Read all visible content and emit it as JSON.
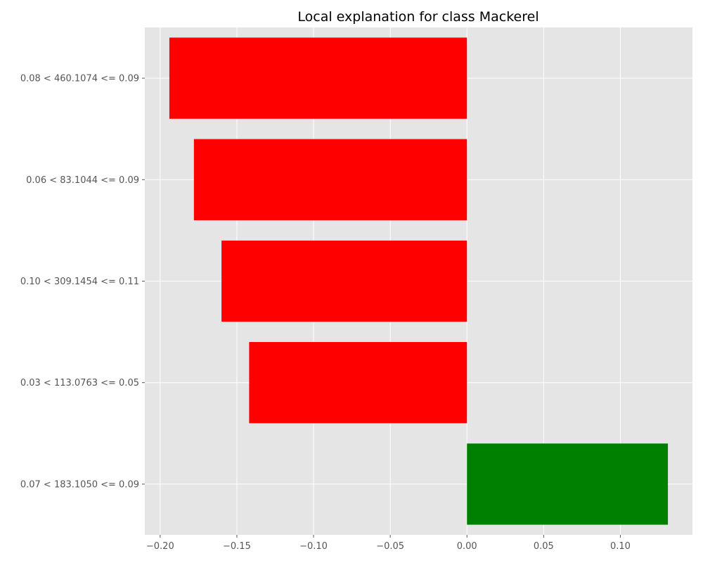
{
  "chart_data": {
    "type": "bar",
    "orientation": "horizontal",
    "title": "Local explanation for class Mackerel",
    "xlabel": "",
    "ylabel": "",
    "categories": [
      "0.08 < 460.1074 <= 0.09",
      "0.06 < 83.1044 <= 0.09",
      "0.10 < 309.1454 <= 0.11",
      "0.03 < 113.0763 <= 0.05",
      "0.07 < 183.1050 <= 0.09"
    ],
    "values": [
      -0.194,
      -0.178,
      -0.16,
      -0.142,
      0.131
    ],
    "xlim": [
      -0.21,
      0.147
    ],
    "xticks": [
      -0.2,
      -0.15,
      -0.1,
      -0.05,
      0.0,
      0.05,
      0.1
    ],
    "xtick_labels": [
      "−0.20",
      "−0.15",
      "−0.10",
      "−0.05",
      "0.00",
      "0.05",
      "0.10"
    ],
    "grid": true,
    "colors": {
      "negative": "#ff0000",
      "positive": "#008000",
      "background": "#e5e5e5",
      "grid": "#ffffff",
      "tick_text": "#555555"
    }
  }
}
